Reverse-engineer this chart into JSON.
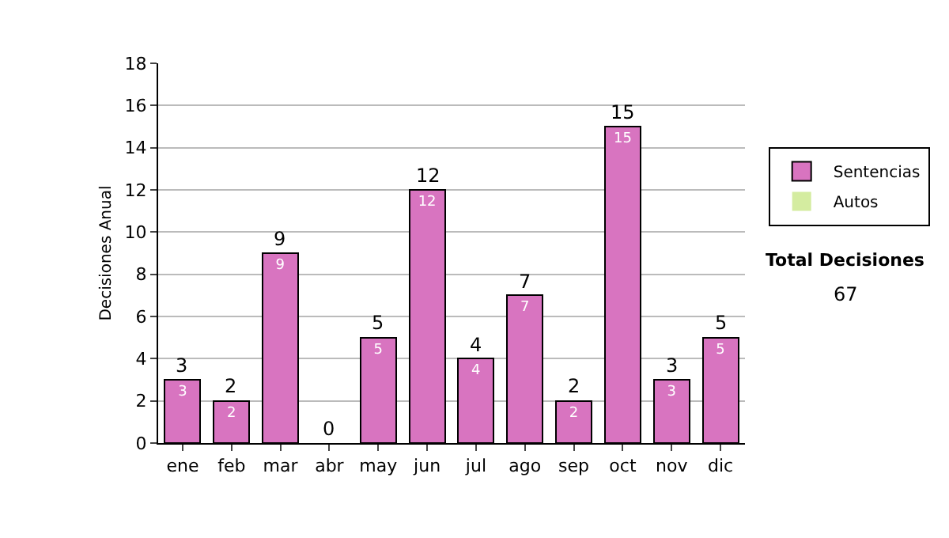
{
  "chart_data": {
    "type": "bar",
    "ylabel": "Decisiones Anual",
    "categories": [
      "ene",
      "feb",
      "mar",
      "abr",
      "may",
      "jun",
      "jul",
      "ago",
      "sep",
      "oct",
      "nov",
      "dic"
    ],
    "series": [
      {
        "name": "Sentencias",
        "color": "#d874c0",
        "values": [
          3,
          2,
          9,
          0,
          5,
          12,
          4,
          7,
          2,
          15,
          3,
          5
        ],
        "value_labels": [
          "3",
          "2",
          "9",
          null,
          "5",
          "12",
          "4",
          "7",
          "2",
          "15",
          "3",
          "5"
        ]
      },
      {
        "name": "Autos",
        "color": "#d4eca0",
        "values": [
          0,
          0,
          0,
          0,
          0,
          0,
          0,
          0,
          0,
          0,
          0,
          0
        ]
      }
    ],
    "stacked": true,
    "totals": [
      "3",
      "2",
      "9",
      "0",
      "5",
      "12",
      "4",
      "7",
      "2",
      "15",
      "3",
      "5"
    ],
    "ylim": [
      0,
      18
    ],
    "yticks": [
      0,
      2,
      4,
      6,
      8,
      10,
      12,
      14,
      16,
      18
    ],
    "grid": "y",
    "legend": "right",
    "annotations": [
      "Total Decisiones",
      "67"
    ]
  }
}
